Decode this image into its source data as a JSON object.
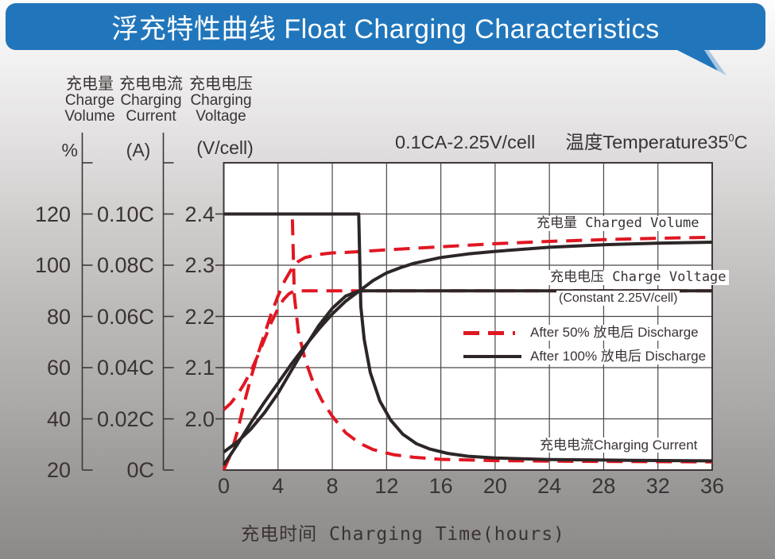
{
  "banner": {
    "title": "浮充特性曲线 Float Charging Characteristics",
    "color": "#2176bb",
    "tail_shadow_color": "#a9c6e2"
  },
  "condition": {
    "left": "0.1CA-2.25V/cell",
    "temp_pre": "温度Temperature35",
    "temp_sup": "0",
    "temp_post": "C"
  },
  "axis_headers": [
    {
      "zh": "充电量",
      "en1": "Charge",
      "en2": "Volume",
      "unit": "%"
    },
    {
      "zh": "充电电流",
      "en1": "Charging",
      "en2": "Current",
      "unit": "(A)"
    },
    {
      "zh": "充电电压",
      "en1": "Charging",
      "en2": "Voltage",
      "unit": "(V/cell)"
    }
  ],
  "curve_labels": {
    "charged_volume": "充电量 Charged Volume",
    "charge_voltage": "充电电压 Charge Voltage",
    "constant": "(Constant 2.25V/cell)",
    "charging_current": "充电电流Charging Current"
  },
  "legend": [
    {
      "label": "After 50% 放电后 Discharge",
      "style": "dashed",
      "color": "#e01722"
    },
    {
      "label": "After 100% 放电后 Discharge",
      "style": "solid",
      "color": "#2d2626"
    }
  ],
  "chart_data": {
    "type": "line",
    "title": "浮充特性曲线 Float Charging Characteristics",
    "annotation": "0.1CA-2.25V/cell 温度Temperature35°C",
    "grid": true,
    "x": {
      "label": "充电时间 Charging Time(hours)",
      "range": [
        0,
        36
      ],
      "ticks": [
        "0",
        "4",
        "8",
        "12",
        "16",
        "20",
        "24",
        "28",
        "32",
        "36"
      ]
    },
    "y_axes": [
      {
        "id": "volume",
        "title": "充电量 Charge Volume",
        "unit": "%",
        "tick_labels": [
          "120",
          "100",
          "80",
          "60",
          "40",
          "20"
        ],
        "plot_bottom": 20,
        "plot_top": 140
      },
      {
        "id": "current",
        "title": "充电电流 Charging Current",
        "unit": "(A)",
        "tick_labels": [
          "0.10C",
          "0.08C",
          "0.06C",
          "0.04C",
          "0.02C",
          "0C"
        ],
        "plot_bottom": 0,
        "plot_top": 0.12
      },
      {
        "id": "voltage",
        "title": "充电电压 Charging Voltage",
        "unit": "(V/cell)",
        "tick_labels": [
          "2.4",
          "2.3",
          "2.2",
          "2.1",
          "2.0"
        ],
        "plot_bottom": 1.9,
        "plot_top": 2.5
      }
    ],
    "series": [
      {
        "id": "voltage-after-50",
        "group": "After 50% 放电后 Discharge",
        "axis": "voltage",
        "color": "#e01722",
        "dash": true,
        "width": 4,
        "points": [
          [
            0,
            2.018
          ],
          [
            0.5,
            2.03
          ],
          [
            1,
            2.047
          ],
          [
            1.5,
            2.068
          ],
          [
            2,
            2.093
          ],
          [
            2.5,
            2.123
          ],
          [
            3,
            2.155
          ],
          [
            3.5,
            2.188
          ],
          [
            4,
            2.215
          ],
          [
            4.4,
            2.233
          ],
          [
            4.8,
            2.244
          ],
          [
            5.2,
            2.25
          ],
          [
            36,
            2.25
          ]
        ]
      },
      {
        "id": "volume-after-50",
        "group": "After 50% 放电后 Discharge",
        "axis": "volume",
        "color": "#e01722",
        "dash": true,
        "width": 4,
        "points": [
          [
            0,
            20
          ],
          [
            0.5,
            26
          ],
          [
            1,
            35
          ],
          [
            1.5,
            46
          ],
          [
            2,
            56
          ],
          [
            2.5,
            65
          ],
          [
            3,
            73
          ],
          [
            3.5,
            81
          ],
          [
            4,
            88
          ],
          [
            4.5,
            94
          ],
          [
            5,
            98.5
          ],
          [
            5.5,
            101.5
          ],
          [
            6,
            103
          ],
          [
            7,
            104.2
          ],
          [
            8,
            104.8
          ],
          [
            9,
            105
          ],
          [
            10,
            105.3
          ],
          [
            12,
            106
          ],
          [
            14,
            106.6
          ],
          [
            16,
            107.2
          ],
          [
            20,
            108.4
          ],
          [
            24,
            109.3
          ],
          [
            28,
            110
          ],
          [
            32,
            110.5
          ],
          [
            36,
            110.9
          ]
        ]
      },
      {
        "id": "current-after-50",
        "group": "After 50% 放电后 Discharge",
        "axis": "current",
        "color": "#e01722",
        "dash": true,
        "width": 4,
        "points": [
          [
            0,
            0.1
          ],
          [
            5.05,
            0.1
          ],
          [
            5.2,
            0.068
          ],
          [
            5.5,
            0.054
          ],
          [
            6,
            0.043
          ],
          [
            6.6,
            0.034
          ],
          [
            7.2,
            0.0275
          ],
          [
            8,
            0.021
          ],
          [
            9,
            0.0145
          ],
          [
            10,
            0.0105
          ],
          [
            11,
            0.008
          ],
          [
            12.5,
            0.006
          ],
          [
            14,
            0.005
          ],
          [
            16,
            0.0042
          ],
          [
            20,
            0.0037
          ],
          [
            26,
            0.0034
          ],
          [
            36,
            0.0032
          ]
        ]
      },
      {
        "id": "voltage-after-100",
        "group": "After 100% 放电后 Discharge",
        "axis": "voltage",
        "color": "#2d2626",
        "dash": false,
        "width": 4,
        "points": [
          [
            0,
            1.935
          ],
          [
            1,
            1.955
          ],
          [
            2,
            1.98
          ],
          [
            3,
            2.012
          ],
          [
            4,
            2.05
          ],
          [
            5,
            2.095
          ],
          [
            6,
            2.14
          ],
          [
            7,
            2.182
          ],
          [
            8,
            2.216
          ],
          [
            9,
            2.24
          ],
          [
            10,
            2.25
          ],
          [
            36,
            2.25
          ]
        ]
      },
      {
        "id": "volume-after-100",
        "group": "After 100% 放电后 Discharge",
        "axis": "volume",
        "color": "#2d2626",
        "dash": false,
        "width": 4,
        "points": [
          [
            0,
            22
          ],
          [
            1,
            30
          ],
          [
            2,
            38.5
          ],
          [
            3,
            46.5
          ],
          [
            4,
            54
          ],
          [
            5,
            61.5
          ],
          [
            6,
            68.5
          ],
          [
            7,
            75
          ],
          [
            8,
            81
          ],
          [
            9,
            86
          ],
          [
            10,
            90
          ],
          [
            11,
            94
          ],
          [
            12,
            97
          ],
          [
            13,
            99
          ],
          [
            14,
            100.7
          ],
          [
            16,
            103
          ],
          [
            18,
            104.4
          ],
          [
            20,
            105.4
          ],
          [
            24,
            107
          ],
          [
            28,
            108
          ],
          [
            32,
            108.6
          ],
          [
            36,
            109
          ]
        ]
      },
      {
        "id": "current-after-100",
        "group": "After 100% 放电后 Discharge",
        "axis": "current",
        "color": "#2d2626",
        "dash": false,
        "width": 4,
        "points": [
          [
            0,
            0.1
          ],
          [
            9.95,
            0.1
          ],
          [
            10.1,
            0.064
          ],
          [
            10.35,
            0.051
          ],
          [
            10.8,
            0.038
          ],
          [
            11.5,
            0.027
          ],
          [
            12.3,
            0.0195
          ],
          [
            13.2,
            0.014
          ],
          [
            14.2,
            0.0103
          ],
          [
            15.2,
            0.0082
          ],
          [
            16.5,
            0.0065
          ],
          [
            18,
            0.0054
          ],
          [
            20,
            0.0047
          ],
          [
            24,
            0.0041
          ],
          [
            30,
            0.0038
          ],
          [
            36,
            0.0036
          ]
        ]
      }
    ],
    "legend_position": "inside-middle-right"
  }
}
